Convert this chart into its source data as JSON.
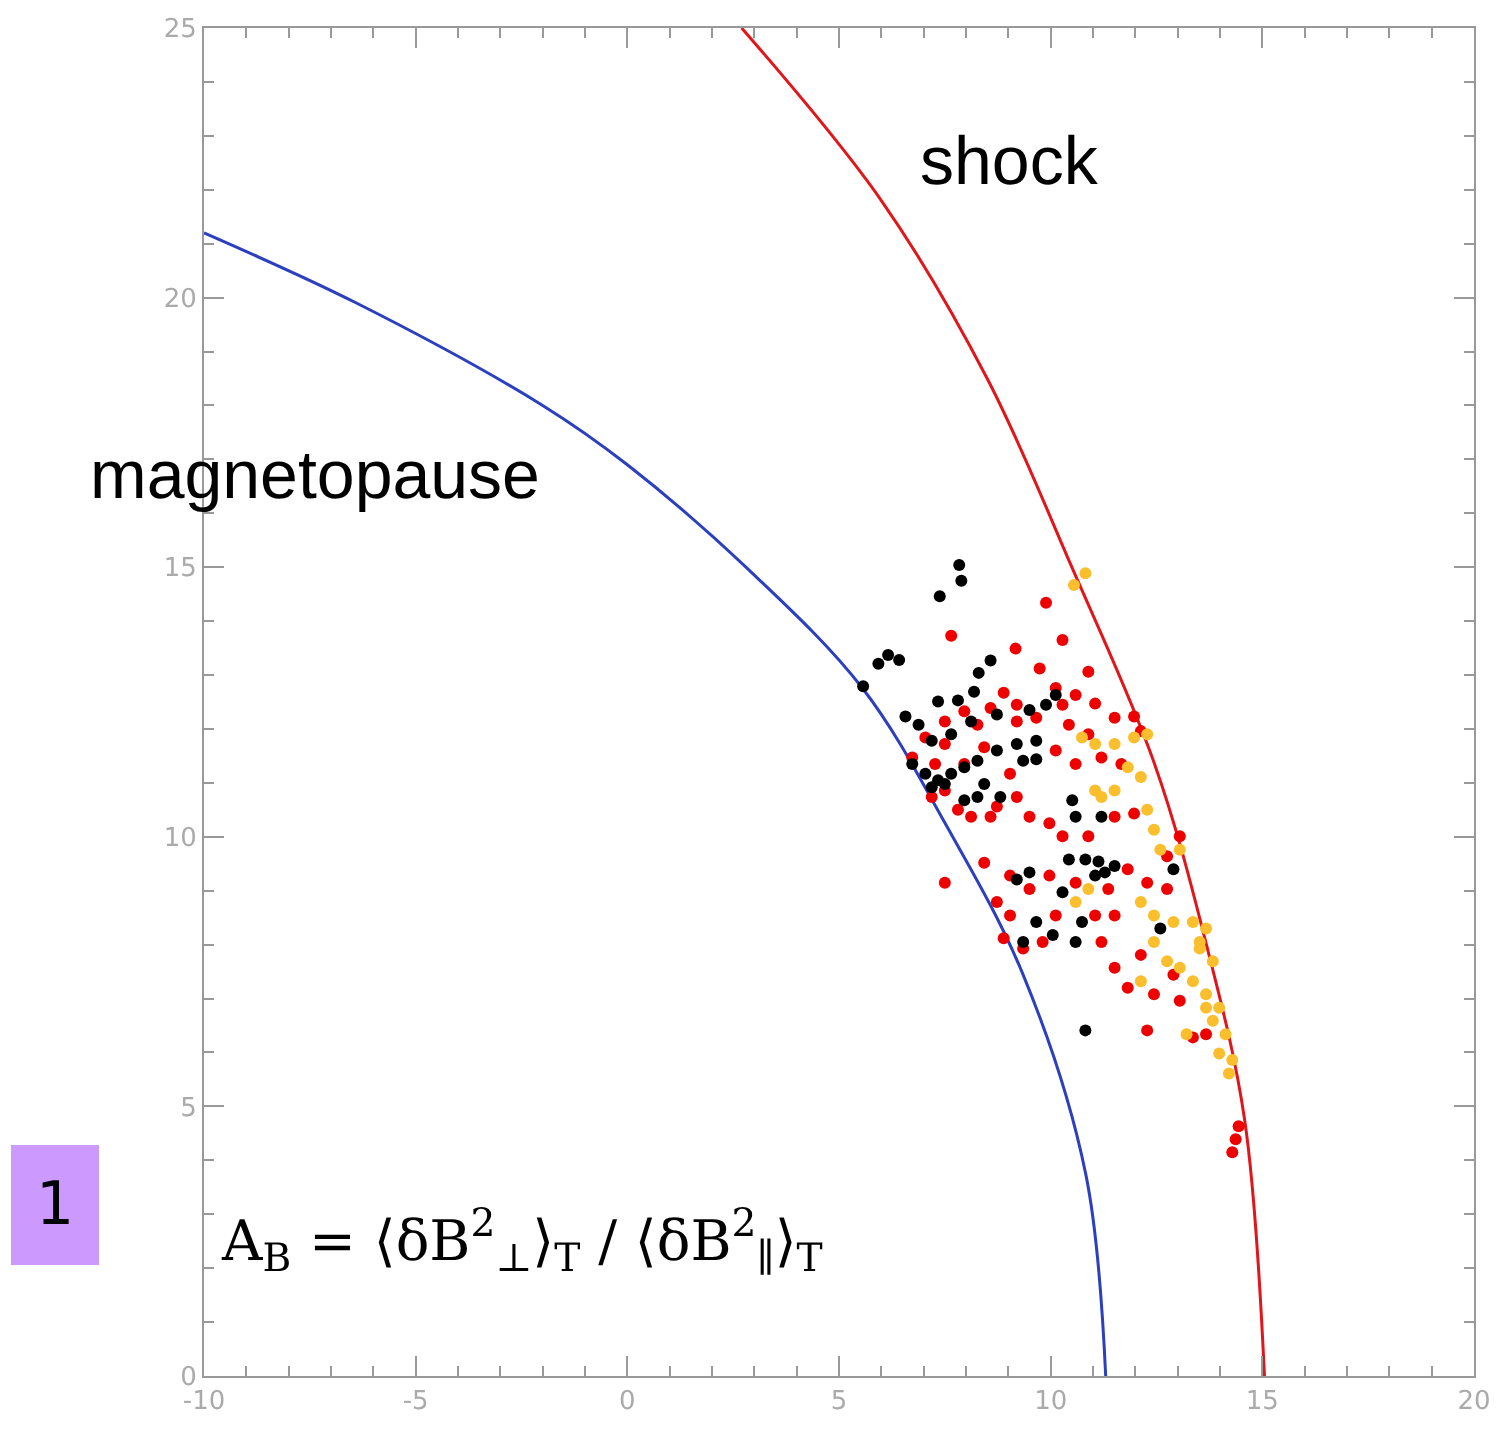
{
  "chart_data": {
    "type": "scatter",
    "xlim": [
      -10,
      20
    ],
    "ylim": [
      0,
      25
    ],
    "xticks": [
      -10,
      -5,
      0,
      5,
      10,
      15,
      20
    ],
    "yticks": [
      0,
      5,
      10,
      15,
      20,
      25
    ],
    "marker": "circle",
    "series": [
      {
        "type": "line",
        "color": "#2b3fbf",
        "marker": "none",
        "x": [
          -10,
          -6.4,
          -2,
          0,
          2.87,
          5.56,
          7.5,
          9.35,
          10.83,
          11.3
        ],
        "values": [
          21.2,
          19.9,
          18.0,
          16.9,
          14.95,
          12.75,
          10.26,
          7.44,
          3.74,
          0
        ]
      },
      {
        "type": "line",
        "color": "#e0161b",
        "marker": "none",
        "x": [
          2.7,
          6.0,
          8.5,
          10.5,
          12.45,
          13.66,
          14.58,
          15.05
        ],
        "values": [
          25,
          21.8,
          18.5,
          15.0,
          11.36,
          8.06,
          4.76,
          0
        ]
      },
      {
        "color": "#ee0000",
        "x": [
          9.89,
          7.65,
          9.17,
          10.28,
          9.74,
          10.89,
          10.12,
          10.59,
          11.05,
          8.89,
          9.2,
          8.58,
          7.5,
          7.96,
          8.27,
          9.2,
          9.66,
          10.28,
          10.43,
          10.89,
          11.51,
          11.97,
          12.13,
          10.12,
          10.59,
          11.2,
          11.67,
          7.04,
          7.5,
          8.43,
          9.04,
          8.73,
          9.2,
          9.5,
          9.97,
          10.28,
          10.89,
          11.51,
          11.97,
          7.5,
          8.12,
          8.58,
          7.81,
          7.19,
          8.43,
          9.04,
          9.5,
          9.97,
          8.73,
          9.04,
          9.35,
          9.81,
          10.59,
          11.36,
          11.82,
          12.28,
          12.75,
          11.51,
          11.2,
          11.51,
          11.82,
          12.44,
          13.05,
          12.13,
          12.9,
          12.28,
          13.36,
          13.67,
          8.89,
          7.5,
          14.44,
          14.37,
          14.29,
          10.12,
          11.05,
          12.75,
          13.05,
          6.73,
          7.27,
          7.96
        ],
        "values": [
          14.34,
          13.73,
          13.49,
          13.65,
          13.12,
          13.06,
          12.76,
          12.63,
          12.47,
          12.67,
          12.45,
          12.39,
          12.14,
          12.33,
          12.08,
          12.14,
          12.21,
          12.45,
          12.08,
          11.9,
          12.21,
          12.23,
          11.96,
          11.6,
          11.35,
          11.47,
          11.35,
          11.84,
          11.72,
          11.66,
          11.17,
          10.56,
          10.74,
          10.37,
          10.25,
          10.01,
          10.01,
          10.37,
          10.43,
          10.86,
          10.37,
          10.37,
          10.5,
          10.74,
          9.52,
          9.28,
          9.03,
          9.28,
          8.79,
          8.54,
          7.93,
          8.05,
          9.15,
          9.03,
          9.4,
          9.15,
          9.03,
          8.54,
          8.05,
          7.57,
          7.2,
          7.08,
          6.96,
          7.81,
          7.44,
          6.41,
          6.28,
          6.34,
          8.12,
          9.15,
          4.63,
          4.39,
          4.15,
          8.54,
          8.54,
          9.64,
          10.01,
          11.47,
          11.35,
          11.35
        ]
      },
      {
        "color": "#fbbf2e",
        "x": [
          10.82,
          10.55,
          10.74,
          11.05,
          11.51,
          11.97,
          12.28,
          11.82,
          12.13,
          11.51,
          11.2,
          11.05,
          12.28,
          12.44,
          12.59,
          13.05,
          10.89,
          10.59,
          12.13,
          12.44,
          12.9,
          13.36,
          13.67,
          13.52,
          13.83,
          12.44,
          12.75,
          13.05,
          13.36,
          13.67,
          13.98,
          13.83,
          14.13,
          14.29,
          14.21,
          13.98,
          13.67,
          12.13,
          13.21,
          13.52
        ],
        "values": [
          14.89,
          14.67,
          11.84,
          11.72,
          11.72,
          11.84,
          11.9,
          11.29,
          11.11,
          10.86,
          10.74,
          10.86,
          10.5,
          10.13,
          9.76,
          9.76,
          9.03,
          8.79,
          8.79,
          8.54,
          8.42,
          8.42,
          8.3,
          7.93,
          7.69,
          8.05,
          7.69,
          7.57,
          7.32,
          7.08,
          6.83,
          6.59,
          6.34,
          5.86,
          5.61,
          5.98,
          6.83,
          7.32,
          6.34,
          8.05
        ]
      },
      {
        "color": "#000000",
        "x": [
          7.84,
          7.89,
          7.38,
          6.16,
          5.93,
          6.42,
          5.57,
          8.3,
          8.58,
          7.34,
          7.81,
          8.19,
          6.57,
          6.88,
          7.19,
          7.65,
          8.12,
          8.73,
          9.5,
          9.89,
          10.12,
          6.73,
          7.04,
          7.34,
          7.65,
          7.96,
          8.27,
          8.73,
          9.2,
          9.66,
          9.35,
          9.66,
          7.19,
          7.5,
          7.96,
          8.27,
          8.81,
          10.51,
          10.59,
          11.2,
          10.43,
          10.82,
          11.13,
          11.28,
          11.51,
          11.05,
          9.5,
          9.2,
          10.28,
          9.66,
          10.05,
          10.59,
          12.59,
          12.9,
          10.82,
          9.35,
          10.74,
          8.43
        ],
        "values": [
          15.04,
          14.75,
          14.46,
          13.37,
          13.21,
          13.28,
          12.79,
          13.04,
          13.27,
          12.51,
          12.53,
          12.69,
          12.23,
          12.08,
          11.78,
          11.9,
          12.14,
          12.27,
          12.35,
          12.45,
          12.63,
          11.35,
          11.17,
          11.05,
          11.17,
          11.29,
          11.41,
          11.6,
          11.72,
          11.78,
          11.41,
          11.44,
          10.92,
          10.98,
          10.68,
          10.74,
          10.74,
          10.68,
          10.37,
          10.37,
          9.58,
          9.58,
          9.54,
          9.34,
          9.46,
          9.28,
          9.34,
          9.21,
          8.97,
          8.42,
          8.18,
          8.05,
          8.3,
          9.4,
          6.41,
          8.05,
          8.42,
          10.98
        ]
      }
    ],
    "annotations": [
      "shock",
      "magnetopause",
      "A$_{B}$ = ⟨δB$^{2}$$_{⊥}$⟩$_{T}$ / ⟨δB$^{2}$$_{∥}$⟩$_{T}$",
      "1"
    ]
  }
}
